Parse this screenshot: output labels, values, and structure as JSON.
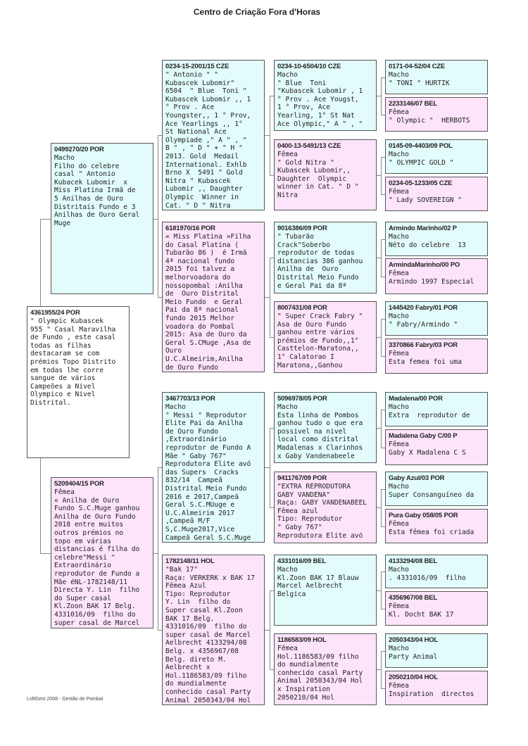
{
  "title": "Centro de Criação Fora d'Horas",
  "footer": "LoftGest 2008 - Gestão de Pombal",
  "colors": {
    "male": "#e2fbfb",
    "female": "#fde4fb",
    "subject": "#ffffff"
  },
  "birds": [
    {
      "ring": "4361955/24 POR",
      "color": "subject",
      "text": "\" Olympic Kubascek\n955 \" Casal Maravilha\nde Fundo , este casal\ntodas as filhas\ndestacaram se com\nprémios Topo Distrito\nem todas lhe corre\nsangue de vários\nCampeões a Nivel\nOlympico e Nivel\nDistrital."
    },
    {
      "ring": "0499270/20 POR",
      "color": "male",
      "text": "Macho\nFilho do celebre\ncasal \" Antonio\nKubacek Lubomir  x\nMiss Platina Irmã de\n5 Anilhas de Ouro\nDistritais Fundo e 3\nAnilhas de Ouro Geral\nMuge"
    },
    {
      "ring": "5209404/15 POR",
      "color": "female",
      "text": "Fêmea\n« Anilha de Ouro\nFundo S.C.Muge ganhou\nAnilha de Ouro Fundo\n2018 entre muitos\noutros prémios no\ntopo em várias\ndistancias é filha do\ncelebre\"Messi \"\nExtraordinário\nreprodutor de Fundo a\nMãe éNL-1782148/11\nDirecta Y. Lin  filho\ndo Super casal\nKl.Zoon BAK 17 Belg.\n4331016/09  filho do\nsuper casal de Marcel"
    },
    {
      "ring": "0234-15-2001/15 CZE",
      "color": "male",
      "text": "\" Antonio \" \"\nKubascek Lubomir\"\n6504  \" Blue  Toni \"\nKubascek Lubomir ,, 1\n° Prov . Ace\nYoungster,, 1 ° Prov,\nAce Yearlings ,, 1°\nSt National Ace\nOlympiade ,\" A \" , \"\nB \" , \" D \" + \" H \"\n2013. Gold  Medail\nInternational. Exhlb\nBrno X  5491 \" Gold\nNitra \" Kubascek\nLubomir ,, Daughter\nOlympic  Winner in\nCat. \" D \" Nitra"
    },
    {
      "ring": "6181970/16 POR",
      "color": "female",
      "text": "« Miss Platina »Filha\ndo Casal Platina (\nTubarão 86 )  é Irmã\n4ª nacional fundo\n2015 foi talvez a\nmelhorvoadora do\nnossopombal :Anilha\nde  Ouro Distrital\nMeio Fundo  e Geral\nPai da 8ª nacional\nfundo 2015 Melhor\nvoadora do Pombal\n2015: Asa de Ouro da\nGeral S.CMuge ,Asa de\nOuro\nU.C.Almeirim,Anilha\nde Ouro Fundo"
    },
    {
      "ring": "3467703/13 POR",
      "color": "male",
      "text": "Macho\n\" Messi \" Reprodutor\nElite Pai da Anilha\nde Ouro Fundo\n,Extraordinário\nreprodutor de Fundo A\nMãe \" Gaby 767\"\nReprodutora Elite avó\ndas Supers  Cracks\n832/14  Campeã\nDistrital Meio Fundo\n2016 e 2017,Campeã\nGeral S.C.MUuge e\nU.C.Almeirim 2017\n,Campeã M/F\nS,C.Muge2017,Vice\nCampeã Geral S.C.Muge"
    },
    {
      "ring": "1782148/11 HOL",
      "color": "female",
      "text": "\"Bak 17\"\nRaça: VERKERK x BAK 17\nFêmea Azul\nTipo: Reprodutor\nY. Lin  filho do\nSuper casal Kl.Zoon\nBAK 17 Belg.\n4331016/09  filho do\nsuper casal de Marcel\nAelbrecht 4133294/08\nBelg. x 4356967/08\nBelg. direto M.\nAelbrecht x\nHol.1186583/09 filho\ndo mundialmente\nconhecido casal Party\nAnimal 2050343/04 Hol"
    },
    {
      "ring": "0234-10-6504/10 CZE",
      "color": "male",
      "text": "Macho\n\" Blue  Toni\n\"Kubascek Lubomir , 1\n° Prov . Ace Yougst,\n1 ° Prov, Ace\nYearling, 1° St Nat\nAce Olympic,\" A \" , \""
    },
    {
      "ring": "0400-13-5491/13 CZE",
      "color": "female",
      "text": "Fêmea\n\" Gold Nitra \"\nKubascek Lubomir,,\nDaughter  Olympic\nwinner in Cat. \" D \"\nNitra"
    },
    {
      "ring": "9016386/09 POR",
      "color": "male",
      "text": "\" Tubarão\nCrack\"Soberbo\nreprodutor de todas\ndistancias 386 ganhou\nAnilha de  Ouro\nDistrital Meio Fundo\ne Geral Pai da 8ª"
    },
    {
      "ring": "8007431/08 POR",
      "color": "female",
      "text": "\" Super Crack Fabry \"\nAsa de Ouro Fundo\nganhou entre vários\nprémios de Fundo,,1°\nCasttelon-Maratona,,\n1° Calatorao I\nMaratona,,Ganhou"
    },
    {
      "ring": "5096978/05 POR",
      "color": "male",
      "text": "Macho\nEsta linha de Pombos\nganhou tudo o que era\npossivel na nivel\nlocal como distrital\nMadalenas x Clarinhos\nx Gaby Vandenabeele"
    },
    {
      "ring": "9411767/09 POR",
      "color": "female",
      "text": "\"EXTRA REPRODUTORA\nGABY VANDENA\"\nRaça: GABY VANDENABEEL\nFêmea azul\nTipo: Reprodutor\n\" Gaby 767\"\nReprodutora Elite avó"
    },
    {
      "ring": "4331016/09 BEL",
      "color": "male",
      "text": "Macho\nKl.Zoon BAK 17 Blauw\nMarcel Aelbrecht\nBelgica"
    },
    {
      "ring": "1186583/09 HOL",
      "color": "female",
      "text": "Fêmea\nHol.1186583/09 filho\ndo mundialmente\nconhecido casal Party\nAnimal 2050343/04 Hol\nx Inspiration\n2050210/04 Hol"
    },
    {
      "ring": "0171-04-52/04 CZE",
      "color": "male",
      "text": "Macho\n\" TONI \" HURTIK"
    },
    {
      "ring": "2233146/07 BEL",
      "color": "female",
      "text": "Fêmea\n\" Olympic \"  HERBOTS"
    },
    {
      "ring": "0145-09-4403/09 POL",
      "color": "male",
      "text": "Macho\n\" OLYMPIC GOLD \""
    },
    {
      "ring": "0234-05-1233/05 CZE",
      "color": "female",
      "text": "Fêmea\n\" Lady SOVEREIGN \""
    },
    {
      "ring": "Armindo Marinho/02 P",
      "color": "male",
      "text": "Macho\nNéto do celebre  13"
    },
    {
      "ring": "ArmindaMarinho/00 PO",
      "color": "female",
      "text": "Fêmea\nArmindo 1997 Especial"
    },
    {
      "ring": "1445420 Fabry/01 POR",
      "color": "male",
      "text": "Macho\n\" Fabry/Armindo \""
    },
    {
      "ring": "3370866 Fabry/03 POR",
      "color": "female",
      "text": "Fêmea\nEsta femea foi uma"
    },
    {
      "ring": "Madalena/00 POR",
      "color": "male",
      "text": "Macho\nExtra  reprodutor de"
    },
    {
      "ring": "Madalena Gaby C/00 P",
      "color": "female",
      "text": "Fêmea\nGaby X Madalena C S"
    },
    {
      "ring": "Gaby Azul/03 POR",
      "color": "male",
      "text": "Macho\nSuper Consanguíneo da"
    },
    {
      "ring": "Pura Gaby 058/05 POR",
      "color": "female",
      "text": "Fêmea\nEsta fêmea foi criada"
    },
    {
      "ring": "4133294/08 BEL",
      "color": "male",
      "text": "Macho\n. 4331016/09  filho"
    },
    {
      "ring": "4356967/08 BEL",
      "color": "female",
      "text": "Fêmea\nKl. Docht BAK 17"
    },
    {
      "ring": "2050343/04 HOL",
      "color": "male",
      "text": "Macho\nParty Animal"
    },
    {
      "ring": "2050210/04 HOL",
      "color": "female",
      "text": "Fêmea\nInspiration  directos"
    }
  ]
}
